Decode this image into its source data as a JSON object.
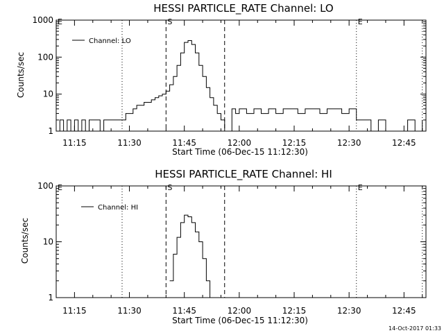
{
  "footer_timestamp": "14-Oct-2017 01:33",
  "chart_data": [
    {
      "type": "line",
      "title": "HESSI PARTICLE_RATE Channel: LO",
      "xlabel": "Start Time (06-Dec-15 11:12:30)",
      "ylabel": "Counts/sec",
      "yscale": "log",
      "ylim": [
        1,
        1000
      ],
      "xlim": [
        "11:10",
        "12:51"
      ],
      "x_ticks": [
        "11:15",
        "11:30",
        "11:45",
        "12:00",
        "12:15",
        "12:30",
        "12:45"
      ],
      "y_ticks": [
        "1",
        "10",
        "100",
        "1000"
      ],
      "legend": {
        "entries": [
          "Channel: LO"
        ],
        "position": "top-left"
      },
      "markers": [
        {
          "label": "E",
          "time": "11:10",
          "style": "dotted"
        },
        {
          "label": "",
          "time": "11:28",
          "style": "dotted"
        },
        {
          "label": "S",
          "time": "11:40",
          "style": "dashed"
        },
        {
          "label": "",
          "time": "11:56",
          "style": "dashed"
        },
        {
          "label": "E",
          "time": "12:32",
          "style": "dotted"
        },
        {
          "label": "",
          "time": "12:50",
          "style": "dotted"
        }
      ],
      "series": [
        {
          "name": "Channel: LO",
          "x": [
            "11:10",
            "11:11",
            "11:12",
            "11:13",
            "11:14",
            "11:15",
            "11:16",
            "11:17",
            "11:18",
            "11:19",
            "11:20",
            "11:21",
            "11:22",
            "11:23",
            "11:24",
            "11:25",
            "11:26",
            "11:27",
            "11:28",
            "11:29",
            "11:30",
            "11:31",
            "11:32",
            "11:33",
            "11:34",
            "11:35",
            "11:36",
            "11:37",
            "11:38",
            "11:39",
            "11:40",
            "11:41",
            "11:42",
            "11:43",
            "11:44",
            "11:45",
            "11:46",
            "11:47",
            "11:48",
            "11:49",
            "11:50",
            "11:51",
            "11:52",
            "11:53",
            "11:54",
            "11:55",
            "11:56",
            "11:57",
            "11:58",
            "11:59",
            "12:00",
            "12:02",
            "12:04",
            "12:06",
            "12:08",
            "12:10",
            "12:12",
            "12:14",
            "12:16",
            "12:18",
            "12:20",
            "12:22",
            "12:24",
            "12:26",
            "12:28",
            "12:30",
            "12:31",
            "12:32",
            "12:33",
            "12:34",
            "12:36",
            "12:38",
            "12:40",
            "12:42",
            "12:44",
            "12:46",
            "12:48",
            "12:50"
          ],
          "y": [
            1,
            2,
            1,
            2,
            1,
            2,
            1,
            2,
            1,
            2,
            2,
            2,
            1,
            2,
            2,
            2,
            2,
            2,
            2,
            3,
            3,
            4,
            5,
            5,
            6,
            6,
            7,
            8,
            9,
            10,
            12,
            18,
            30,
            60,
            130,
            250,
            280,
            220,
            130,
            60,
            30,
            15,
            8,
            5,
            3,
            2,
            1,
            1,
            4,
            3,
            4,
            3,
            4,
            3,
            4,
            3,
            4,
            4,
            3,
            4,
            4,
            3,
            4,
            4,
            3,
            4,
            4,
            2,
            2,
            2,
            1,
            2,
            1,
            1,
            1,
            2,
            1,
            2
          ]
        }
      ]
    },
    {
      "type": "line",
      "title": "HESSI PARTICLE_RATE Channel: HI",
      "xlabel": "Start Time (06-Dec-15 11:12:30)",
      "ylabel": "Counts/sec",
      "yscale": "log",
      "ylim": [
        1,
        100
      ],
      "xlim": [
        "11:10",
        "12:51"
      ],
      "x_ticks": [
        "11:15",
        "11:30",
        "11:45",
        "12:00",
        "12:15",
        "12:30",
        "12:45"
      ],
      "y_ticks": [
        "1",
        "10",
        "100"
      ],
      "legend": {
        "entries": [
          "Channel: HI"
        ],
        "position": "top-left"
      },
      "markers": [
        {
          "label": "E",
          "time": "11:10",
          "style": "dotted"
        },
        {
          "label": "",
          "time": "11:28",
          "style": "dotted"
        },
        {
          "label": "S",
          "time": "11:40",
          "style": "dashed"
        },
        {
          "label": "",
          "time": "11:56",
          "style": "dashed"
        },
        {
          "label": "E",
          "time": "12:32",
          "style": "dotted"
        },
        {
          "label": "",
          "time": "12:50",
          "style": "dotted"
        }
      ],
      "series": [
        {
          "name": "Channel: HI",
          "x": [
            "11:41",
            "11:42",
            "11:43",
            "11:44",
            "11:45",
            "11:46",
            "11:47",
            "11:48",
            "11:49",
            "11:50",
            "11:51",
            "11:52"
          ],
          "y": [
            2,
            6,
            12,
            22,
            30,
            28,
            22,
            15,
            10,
            5,
            2,
            1
          ]
        }
      ]
    }
  ]
}
